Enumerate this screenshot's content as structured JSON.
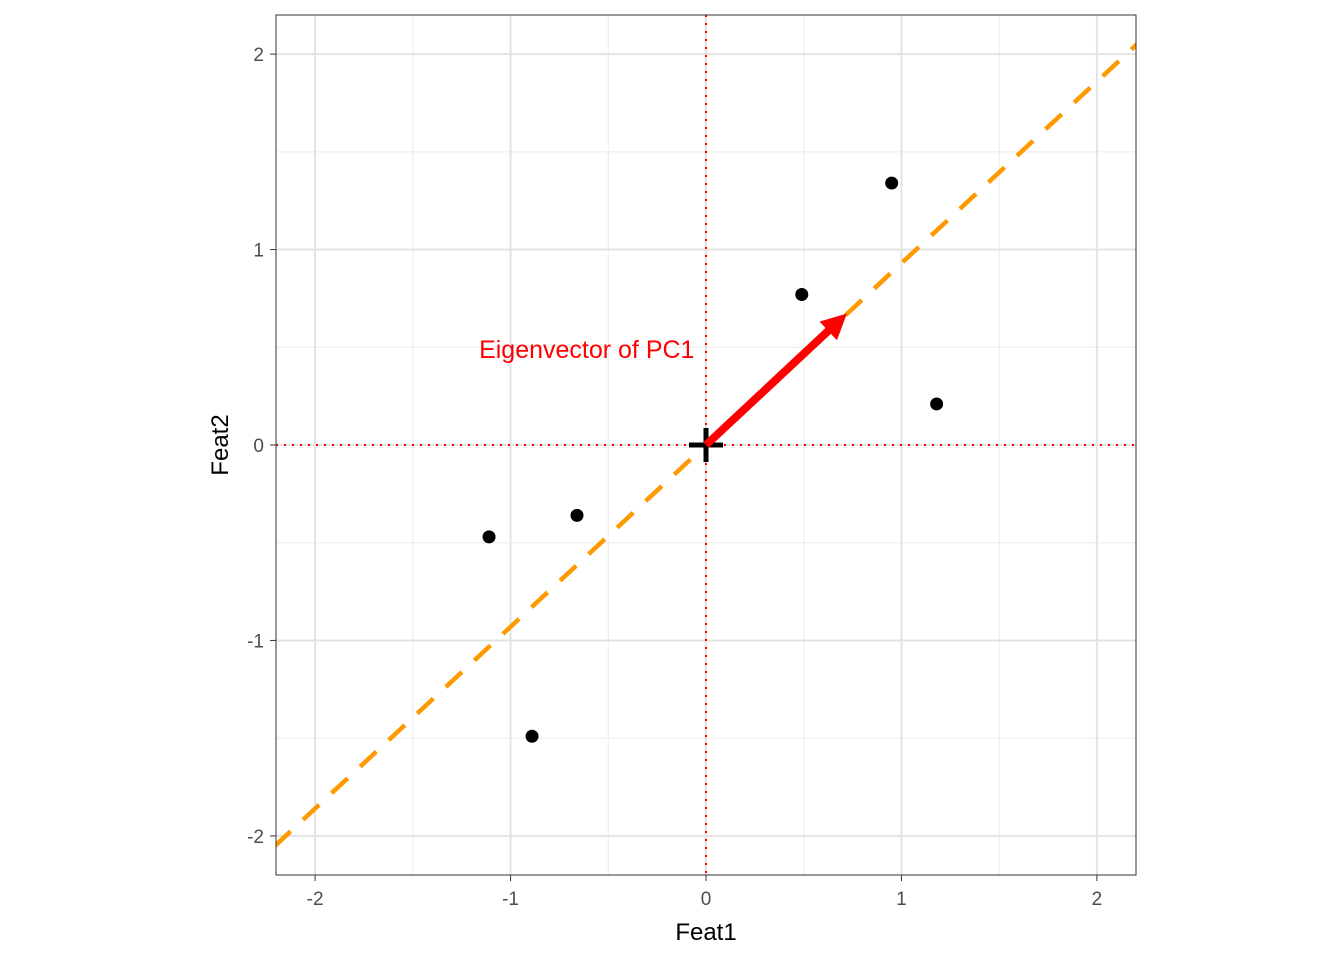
{
  "chart_data": {
    "type": "scatter",
    "title": "",
    "xlabel": "Feat1",
    "ylabel": "Feat2",
    "xlim": [
      -2.2,
      2.2
    ],
    "ylim": [
      -2.2,
      2.2
    ],
    "grid": true,
    "x_ticks": [
      -2,
      -1,
      0,
      1,
      2
    ],
    "y_ticks": [
      -2,
      -1,
      0,
      1,
      2
    ],
    "x_tick_labels": [
      "-2",
      "-1",
      "0",
      "1",
      "2"
    ],
    "y_tick_labels": [
      "-2",
      "-1",
      "0",
      "1",
      "2"
    ],
    "points": [
      {
        "x": 0.49,
        "y": 0.77
      },
      {
        "x": 0.95,
        "y": 1.34
      },
      {
        "x": 1.18,
        "y": 0.21
      },
      {
        "x": -0.66,
        "y": -0.36
      },
      {
        "x": -1.11,
        "y": -0.47
      },
      {
        "x": -0.89,
        "y": -1.49
      }
    ],
    "center_marker": {
      "x": 0,
      "y": 0
    },
    "reference_lines": {
      "h": 0,
      "v": 0,
      "color": "#FF0000"
    },
    "pc1_line": {
      "slope": 0.93,
      "intercept": 0,
      "color": "#FF9900"
    },
    "arrow": {
      "x0": 0,
      "y0": 0,
      "x1": 0.75,
      "y1": 0.7,
      "color": "#FF0000"
    },
    "annotation": {
      "text": "Eigenvector of PC1",
      "x": -0.61,
      "y": 0.49,
      "color": "#FF0000"
    }
  }
}
